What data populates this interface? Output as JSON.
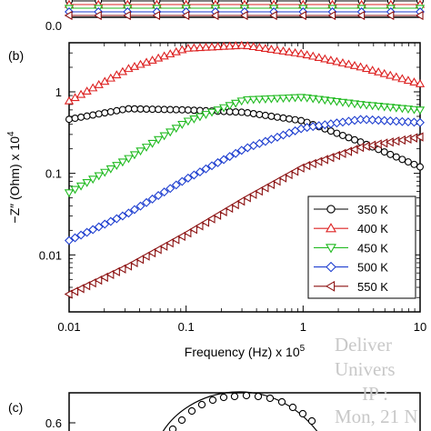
{
  "panel_a": {
    "ytick": "0.0",
    "series_colors": [
      "#000000",
      "#dd2222",
      "#22bb22",
      "#1f3fd0",
      "#8b1010"
    ],
    "marker_xs": [
      0.01,
      0.0178,
      0.0316,
      0.0562,
      0.1,
      0.178,
      0.316,
      0.562,
      1.0,
      1.78,
      3.16,
      5.62,
      10
    ],
    "levels": [
      0.018,
      0.014,
      0.01,
      0.006,
      0.002
    ]
  },
  "chart_data": {
    "type": "line",
    "panel_label": "(b)",
    "xlabel": "Frequency (Hz) x 10",
    "xlabel_sup": "5",
    "ylabel": "−Z″ (Ohm) x 10",
    "ylabel_sup": "4",
    "xscale": "log",
    "yscale": "log",
    "xlim": [
      0.01,
      10
    ],
    "ylim": [
      0.002,
      4
    ],
    "xticks": [
      "0.01",
      "0.1",
      "1",
      "10"
    ],
    "yticks": [
      "0.01",
      "0.1",
      "1"
    ],
    "grid": false,
    "legend_position": "bottom-right",
    "series": [
      {
        "name": "350 K",
        "color": "#000000",
        "marker": "circle",
        "x": [
          0.01,
          0.0316,
          0.1,
          0.316,
          1,
          3.16,
          10
        ],
        "y": [
          0.46,
          0.62,
          0.6,
          0.56,
          0.44,
          0.24,
          0.12
        ]
      },
      {
        "name": "400 K",
        "color": "#dd2222",
        "marker": "triangle-up",
        "x": [
          0.01,
          0.0316,
          0.1,
          0.316,
          1,
          3.16,
          10
        ],
        "y": [
          0.77,
          1.9,
          3.4,
          3.7,
          2.9,
          2.0,
          1.25
        ]
      },
      {
        "name": "450 K",
        "color": "#22bb22",
        "marker": "triangle-down",
        "x": [
          0.01,
          0.0316,
          0.1,
          0.316,
          1,
          3.16,
          10
        ],
        "y": [
          0.058,
          0.15,
          0.43,
          0.8,
          0.86,
          0.7,
          0.6
        ]
      },
      {
        "name": "500 K",
        "color": "#1f3fd0",
        "marker": "diamond",
        "x": [
          0.01,
          0.0316,
          0.1,
          0.316,
          1,
          3.16,
          10
        ],
        "y": [
          0.015,
          0.032,
          0.085,
          0.2,
          0.36,
          0.46,
          0.42
        ]
      },
      {
        "name": "550 K",
        "color": "#8b1010",
        "marker": "triangle-left",
        "x": [
          0.01,
          0.0316,
          0.1,
          0.316,
          1,
          3.16,
          10
        ],
        "y": [
          0.0033,
          0.0072,
          0.018,
          0.048,
          0.12,
          0.21,
          0.28
        ]
      }
    ]
  },
  "panel_c": {
    "label": "(c)",
    "ytick": "0.6"
  },
  "watermark": {
    "line1": "Deliver",
    "line2": "Univers",
    "line3": "IP :",
    "line4": "Mon, 21 N"
  }
}
